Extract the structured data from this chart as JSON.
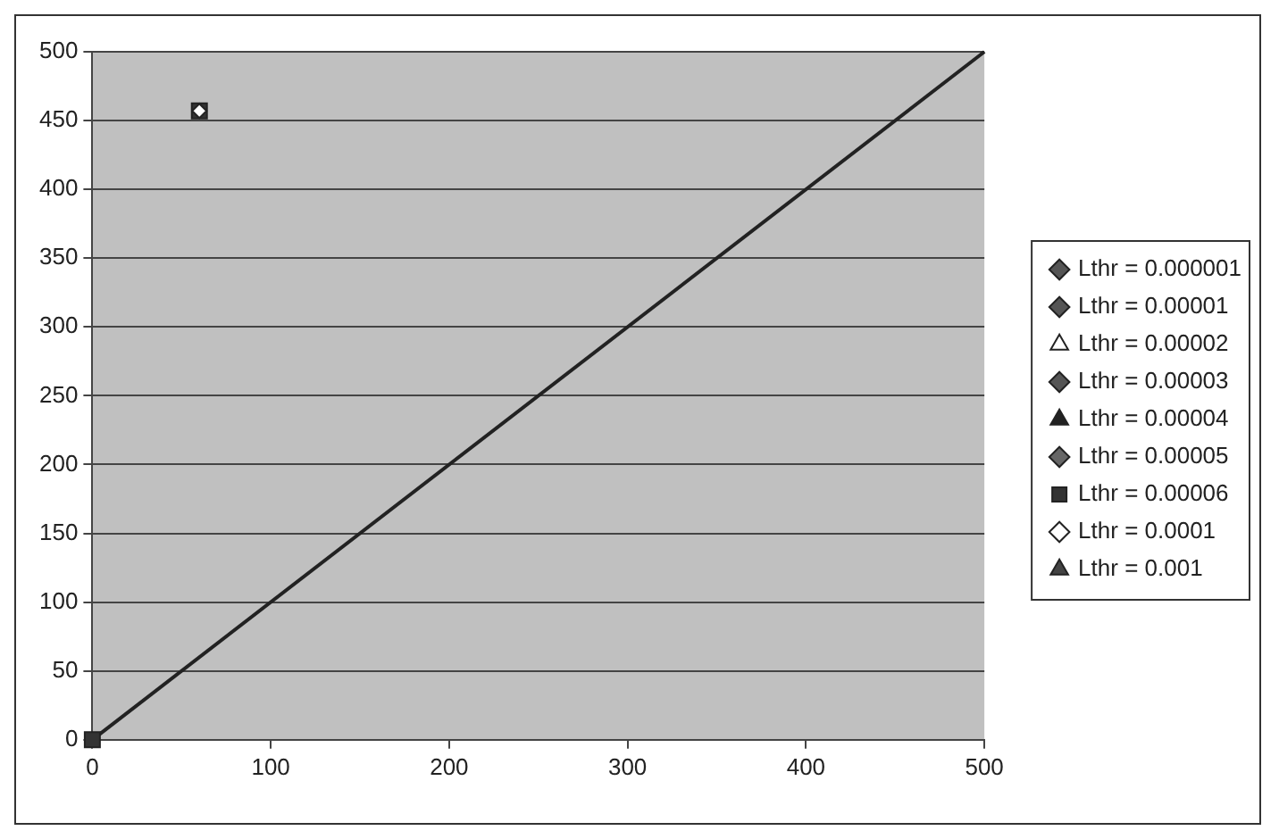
{
  "chart_data": {
    "type": "scatter",
    "xlim": [
      0,
      500
    ],
    "ylim": [
      0,
      500
    ],
    "xticks": [
      0,
      100,
      200,
      300,
      400,
      500
    ],
    "yticks": [
      0,
      50,
      100,
      150,
      200,
      250,
      300,
      350,
      400,
      450,
      500
    ],
    "grid": "y",
    "legend": "right",
    "series": [
      {
        "name": "Lthr = 0.000001",
        "color": "#555555",
        "marker": "diamond"
      },
      {
        "name": "Lthr = 0.00001",
        "color": "#555555",
        "marker": "diamond"
      },
      {
        "name": "Lthr = 0.00002",
        "color": "#ffffff",
        "marker": "triangle"
      },
      {
        "name": "Lthr = 0.00003",
        "color": "#555555",
        "marker": "diamond"
      },
      {
        "name": "Lthr = 0.00004",
        "color": "#222222",
        "marker": "triangle"
      },
      {
        "name": "Lthr = 0.00005",
        "color": "#666666",
        "marker": "diamond"
      },
      {
        "name": "Lthr = 0.00006",
        "color": "#333333",
        "marker": "square",
        "x": [
          0,
          60
        ],
        "values": [
          0,
          457
        ]
      },
      {
        "name": "Lthr = 0.0001",
        "color": "#ffffff",
        "marker": "diamond",
        "x": [
          60
        ],
        "values": [
          457
        ]
      },
      {
        "name": "Lthr = 0.001",
        "color": "#444444",
        "marker": "triangle"
      },
      {
        "type": "line",
        "color": "#222222",
        "marker": "none",
        "x": [
          0,
          500
        ],
        "values": [
          0,
          500
        ]
      }
    ]
  }
}
